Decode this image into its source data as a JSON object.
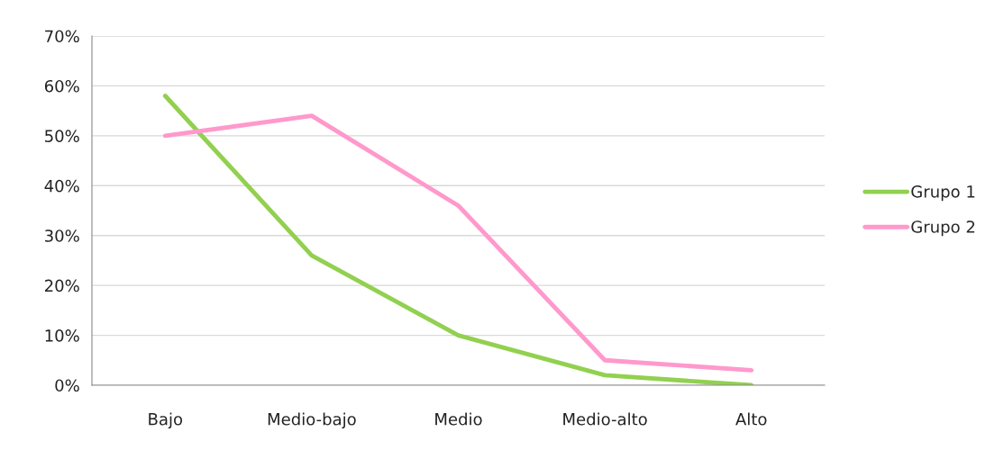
{
  "chart_data": {
    "type": "line",
    "categories": [
      "Bajo",
      "Medio-bajo",
      "Medio",
      "Medio-alto",
      "Alto"
    ],
    "series": [
      {
        "name": "Grupo 1",
        "color": "#92d050",
        "values": [
          58,
          26,
          10,
          2,
          0
        ]
      },
      {
        "name": "Grupo 2",
        "color": "#ff99cc",
        "values": [
          50,
          54,
          36,
          5,
          3
        ]
      }
    ],
    "ylim": [
      0,
      70
    ],
    "yticks": [
      {
        "value": 0,
        "label": "0%"
      },
      {
        "value": 10,
        "label": "10%"
      },
      {
        "value": 20,
        "label": "20%"
      },
      {
        "value": 30,
        "label": "30%"
      },
      {
        "value": 40,
        "label": "40%"
      },
      {
        "value": 50,
        "label": "50%"
      },
      {
        "value": 60,
        "label": "60%"
      },
      {
        "value": 70,
        "label": "70%"
      }
    ],
    "grid": "y",
    "legend": "right",
    "marker": "none",
    "line_style": "solid"
  }
}
